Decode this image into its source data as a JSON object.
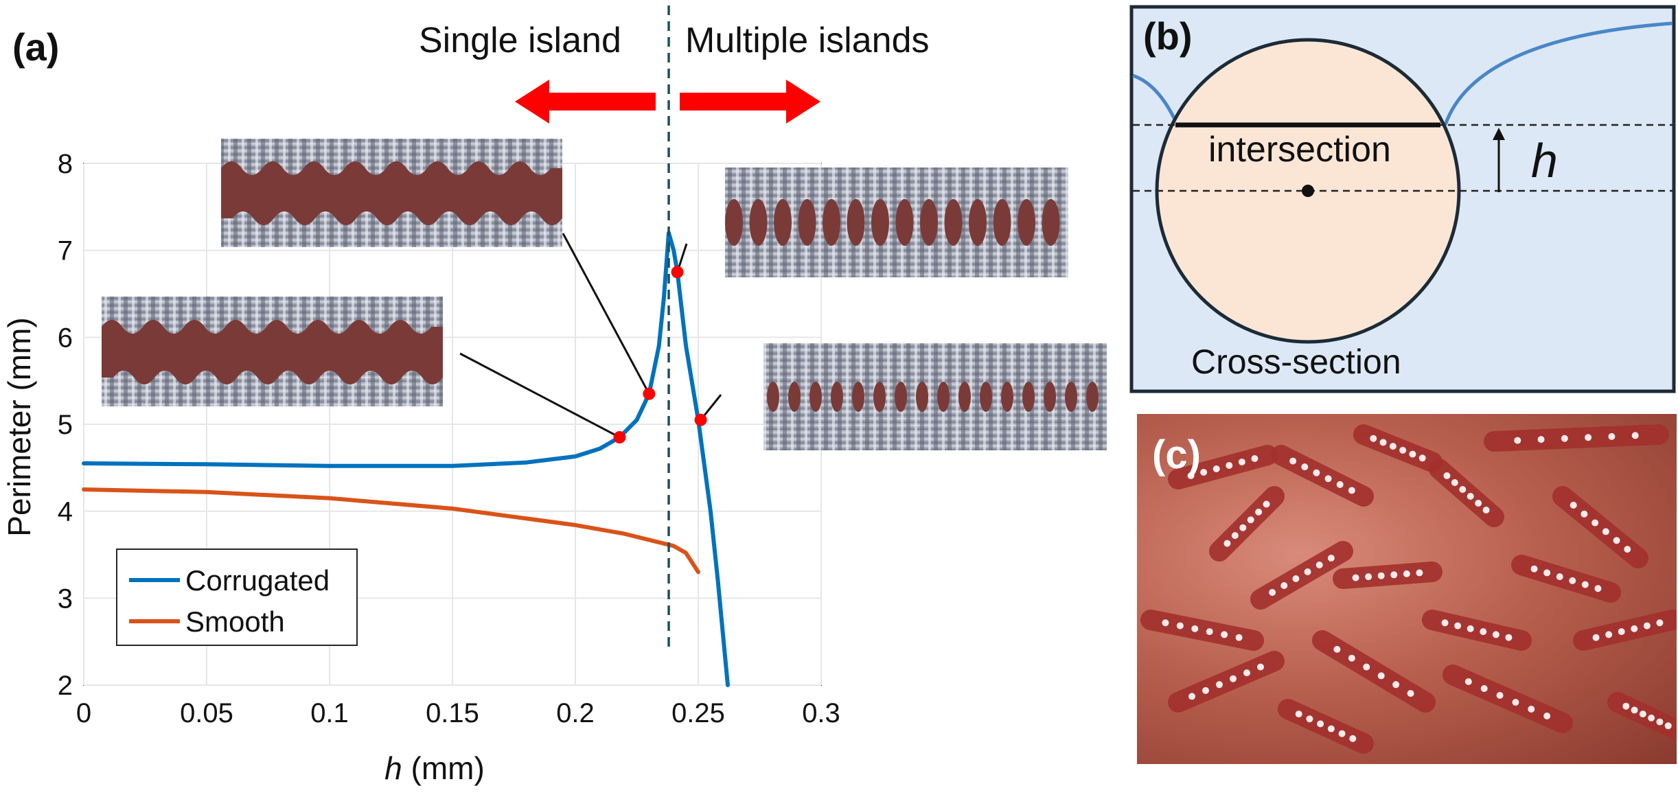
{
  "panel_a": {
    "label": "(a)",
    "regime_left": "Single island",
    "regime_right": "Multiple islands"
  },
  "chart_data": {
    "type": "line",
    "xlabel_italic": "h",
    "xlabel_unit": "(mm)",
    "ylabel": "Perimeter (mm)",
    "xlim": [
      0,
      0.3
    ],
    "ylim": [
      2,
      8
    ],
    "xticks": [
      0,
      0.05,
      0.1,
      0.15,
      0.2,
      0.25,
      0.3
    ],
    "xtick_labels": [
      "0",
      "0.05",
      "0.1",
      "0.15",
      "0.2",
      "0.25",
      "0.3"
    ],
    "yticks": [
      2,
      3,
      4,
      5,
      6,
      7,
      8
    ],
    "ytick_labels": [
      "2",
      "3",
      "4",
      "5",
      "6",
      "7",
      "8"
    ],
    "grid": true,
    "legend_position": "bottom-left",
    "transition_h": 0.238,
    "series": [
      {
        "name": "Corrugated",
        "color": "#0072BD",
        "x": [
          0,
          0.05,
          0.1,
          0.15,
          0.18,
          0.2,
          0.21,
          0.218,
          0.225,
          0.23,
          0.234,
          0.236,
          0.238,
          0.24,
          0.2415,
          0.245,
          0.25,
          0.255,
          0.258,
          0.26,
          0.262
        ],
        "y": [
          4.55,
          4.54,
          4.52,
          4.52,
          4.56,
          4.63,
          4.72,
          4.85,
          5.05,
          5.35,
          5.9,
          6.45,
          7.2,
          7.0,
          6.75,
          5.9,
          5.05,
          4.0,
          3.2,
          2.6,
          2.0
        ]
      },
      {
        "name": "Smooth",
        "color": "#D95319",
        "x": [
          0,
          0.05,
          0.1,
          0.15,
          0.2,
          0.22,
          0.24,
          0.245,
          0.25
        ],
        "y": [
          4.25,
          4.22,
          4.15,
          4.03,
          3.84,
          3.74,
          3.6,
          3.52,
          3.3
        ]
      }
    ],
    "markers": [
      {
        "x": 0.218,
        "y": 4.85
      },
      {
        "x": 0.23,
        "y": 5.35
      },
      {
        "x": 0.2415,
        "y": 6.75
      },
      {
        "x": 0.251,
        "y": 5.05
      }
    ]
  },
  "panel_b": {
    "label": "(b)",
    "intersection_label": "intersection",
    "h_label": "h",
    "cross_section_label": "Cross-section"
  },
  "panel_c": {
    "label": "(c)"
  },
  "colors": {
    "water": "#dce8f5",
    "sphere": "#fbe6d6",
    "island": "#7a3b38",
    "arrow": "#ff0000",
    "dashed_line": "#1f4e5f"
  }
}
